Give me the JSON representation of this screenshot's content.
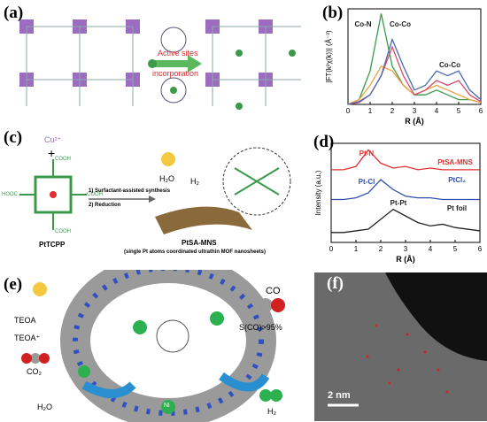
{
  "panels": [
    {
      "label": "(a)",
      "texts": [
        "Active sites",
        "incorporation"
      ]
    },
    {
      "label": "(b)"
    },
    {
      "label": "(c)",
      "texts": [
        "Cu²⁺",
        "+",
        "COOH",
        "COOH",
        "HOOC",
        "COOH",
        "PtTCPP",
        "1) Surfactant-assisted synthesis",
        "2) Reduction",
        "H₂O",
        "H₂",
        "PtSA-MNS",
        "(single Pt atoms coordinated ultrathin MOF nanosheets)"
      ]
    },
    {
      "label": "(d)"
    },
    {
      "label": "(e)",
      "texts": [
        "TEOA",
        "TEOA⁺",
        "CO₂",
        "H₂O",
        "CO",
        "S(CO)>95%",
        "H₂",
        "Ni"
      ]
    },
    {
      "label": "(f)",
      "texts": [
        "2 nm"
      ]
    }
  ],
  "chart_data": [
    {
      "type": "line",
      "xlabel": "R (Å)",
      "ylabel": "|FT(k²χ(k))| (Å⁻³)",
      "x": [
        0,
        0.5,
        1,
        1.5,
        2,
        2.5,
        3,
        3.5,
        4,
        4.5,
        5,
        5.5,
        6
      ],
      "xlim": [
        0,
        6
      ],
      "xticks": [
        0,
        1,
        2,
        3,
        4,
        5,
        6
      ],
      "ylim": [
        0,
        1
      ],
      "annotations": [
        "Co-N",
        "Co-Co",
        "Co-Co"
      ],
      "series": [
        {
          "color": "#3a9a4a",
          "values": [
            0,
            0.05,
            0.35,
            0.95,
            0.4,
            0.2,
            0.1,
            0.1,
            0.15,
            0.1,
            0.05,
            0.05,
            0.02
          ]
        },
        {
          "color": "#f0a040",
          "values": [
            0,
            0.05,
            0.2,
            0.4,
            0.35,
            0.2,
            0.1,
            0.15,
            0.2,
            0.15,
            0.1,
            0.05,
            0.02
          ]
        },
        {
          "color": "#d84a6a",
          "values": [
            0,
            0.02,
            0.1,
            0.3,
            0.6,
            0.3,
            0.1,
            0.15,
            0.25,
            0.2,
            0.25,
            0.1,
            0.03
          ]
        },
        {
          "color": "#4a6ab0",
          "values": [
            0,
            0.03,
            0.1,
            0.3,
            0.68,
            0.4,
            0.15,
            0.2,
            0.35,
            0.3,
            0.35,
            0.15,
            0.05
          ]
        }
      ]
    },
    {
      "type": "line",
      "xlabel": "R (Å)",
      "ylabel": "Intensity (a.u.)",
      "x": [
        0,
        0.5,
        1,
        1.5,
        2,
        2.5,
        3,
        3.5,
        4,
        4.5,
        5,
        5.5,
        6
      ],
      "xlim": [
        0,
        6
      ],
      "xticks": [
        0,
        1,
        2,
        3,
        4,
        5,
        6
      ],
      "ylim": [
        0,
        3
      ],
      "annotations": [
        "Pt-N",
        "PtSA-MNS",
        "Pt-Cl",
        "PtCl₂",
        "Pt-Pt",
        "Pt foil"
      ],
      "series": [
        {
          "color": "#e03030",
          "values": [
            2.2,
            2.2,
            2.3,
            2.8,
            2.4,
            2.25,
            2.3,
            2.2,
            2.25,
            2.2,
            2.2,
            2.2,
            2.2
          ]
        },
        {
          "color": "#3050b0",
          "values": [
            1.3,
            1.3,
            1.35,
            1.5,
            1.9,
            1.6,
            1.4,
            1.35,
            1.35,
            1.3,
            1.3,
            1.3,
            1.3
          ]
        },
        {
          "color": "#222222",
          "values": [
            0.3,
            0.3,
            0.35,
            0.4,
            0.7,
            1.0,
            0.8,
            0.6,
            0.5,
            0.55,
            0.45,
            0.4,
            0.35
          ]
        }
      ]
    }
  ]
}
